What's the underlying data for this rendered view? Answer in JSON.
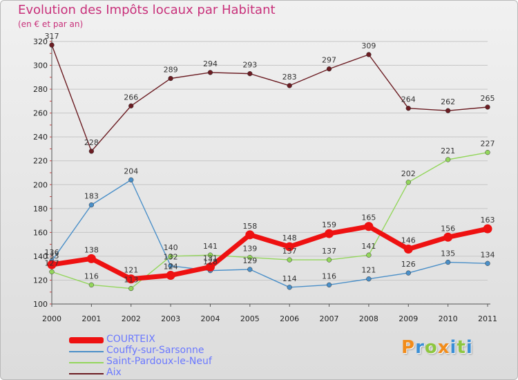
{
  "header": {
    "title": "Evolution des Impôts locaux par Habitant",
    "subtitle": "(en € et par an)"
  },
  "colors": {
    "title": "#c8307a",
    "legend_text": "#6a78ff",
    "grid": "#c6c6c6",
    "axis_text": "#222222",
    "value_label": "#333333"
  },
  "chart_data": {
    "type": "line",
    "title": "Evolution des Impôts locaux par Habitant",
    "subtitle": "(en € et par an)",
    "xlabel": "",
    "ylabel": "",
    "x": [
      "2000",
      "2001",
      "2002",
      "2003",
      "2004",
      "2005",
      "2006",
      "2007",
      "2008",
      "2009",
      "2010",
      "2011"
    ],
    "ylim": [
      100,
      320
    ],
    "yticks": [
      100,
      120,
      140,
      160,
      180,
      200,
      220,
      240,
      260,
      280,
      300,
      320
    ],
    "grid": "horizontal",
    "legend_position": "bottom-left",
    "series": [
      {
        "name": "Aix",
        "color": "#6b1c22",
        "values": [
          317,
          228,
          266,
          289,
          294,
          293,
          283,
          297,
          309,
          264,
          262,
          265
        ]
      },
      {
        "name": "Couffy-sur-Sarsonne",
        "color": "#4a8fc8",
        "values": [
          136,
          183,
          204,
          132,
          128,
          129,
          114,
          116,
          121,
          126,
          135,
          134
        ]
      },
      {
        "name": "Saint-Pardoux-le-Neuf",
        "color": "#93d65b",
        "values": [
          127,
          116,
          113,
          140,
          141,
          139,
          137,
          137,
          141,
          202,
          221,
          227
        ]
      },
      {
        "name": "COURTEIX",
        "color": "#ee1111",
        "values": [
          133,
          138,
          121,
          124,
          131,
          158,
          148,
          159,
          165,
          146,
          156,
          163
        ]
      }
    ],
    "value_labels": {
      "Aix": [
        "317",
        "228",
        "266",
        "289",
        "294",
        "293",
        "283",
        "297",
        "309",
        "264",
        "262",
        "265"
      ],
      "Couffy-sur-Sarsonne": [
        "136",
        "183",
        "204",
        "132",
        "128",
        "129",
        "114",
        "116",
        "121",
        "126",
        "135",
        "134"
      ],
      "Saint-Pardoux-le-Neuf": [
        "127",
        "116",
        "113",
        "140",
        "141",
        "139",
        "137",
        "137",
        "141",
        "202",
        "221",
        "227"
      ],
      "COURTEIX": [
        "133",
        "138",
        "121",
        "124",
        "131",
        "158",
        "148",
        "159",
        "165",
        "146",
        "156",
        "163"
      ]
    }
  },
  "legend": {
    "items": [
      {
        "label": "COURTEIX",
        "color": "#ee1111",
        "weight": "thick"
      },
      {
        "label": "Couffy-sur-Sarsonne",
        "color": "#4a8fc8",
        "weight": "thin"
      },
      {
        "label": "Saint-Pardoux-le-Neuf",
        "color": "#93d65b",
        "weight": "thin"
      },
      {
        "label": "Aix",
        "color": "#6b1c22",
        "weight": "thin"
      }
    ]
  },
  "brand": {
    "text": "Proxiti",
    "letters": [
      {
        "ch": "P",
        "color": "#f28c1a"
      },
      {
        "ch": "r",
        "color": "#3a8fd6"
      },
      {
        "ch": "o",
        "color": "#8dc63f"
      },
      {
        "ch": "x",
        "color": "#f28c1a"
      },
      {
        "ch": "i",
        "color": "#3a8fd6"
      },
      {
        "ch": "t",
        "color": "#8dc63f"
      },
      {
        "ch": "i",
        "color": "#3a8fd6"
      }
    ]
  }
}
